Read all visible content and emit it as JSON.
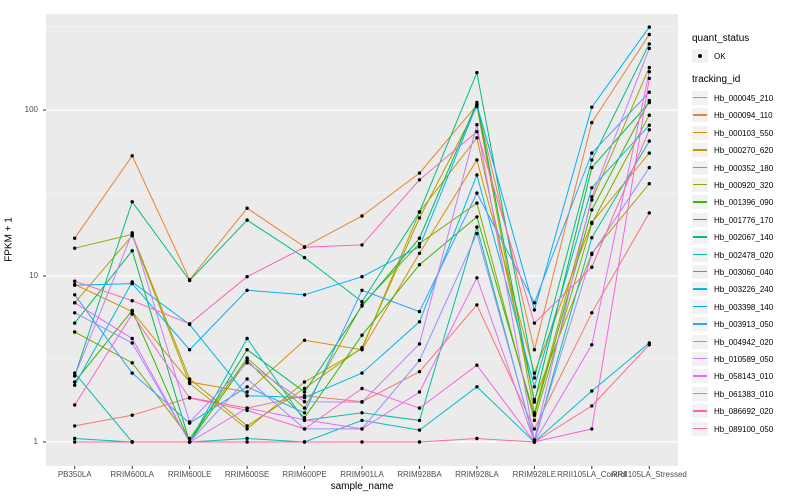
{
  "chart_data": {
    "type": "line",
    "title": "",
    "xlabel": "sample_name",
    "ylabel": "FPKM + 1",
    "y_scale": "log10",
    "ylim": [
      0.72,
      380
    ],
    "y_ticks": [
      1,
      10,
      100
    ],
    "grid": "on",
    "panel_bg": "#EBEBEB",
    "grid_color": "#FFFFFF",
    "point_color": "#000000",
    "legend_position": "right",
    "legend": {
      "quant_status_title": "quant_status",
      "quant_status_items": [
        {
          "label": "OK"
        }
      ],
      "tracking_title": "tracking_id"
    },
    "x_categories": [
      "PB350LA",
      "RRIM600LA",
      "RRIM600LE",
      "RRIM600SE",
      "RRIM600PE",
      "RRIM901LA",
      "RRIM928BA",
      "RRIM928LA",
      "RRIM928LE",
      "RRII105LA_Control",
      "RRII105LA_Stressed"
    ],
    "series": [
      {
        "name": "Hb_000045_210",
        "color": "#F8766D",
        "values": [
          1.25,
          1.45,
          1.85,
          1.6,
          1.9,
          1.75,
          2.65,
          6.7,
          1.2,
          6.0,
          24
        ]
      },
      {
        "name": "Hb_000094_110",
        "color": "#EA8331",
        "values": [
          16.9,
          53,
          9.5,
          25.6,
          15,
          23,
          41.7,
          107,
          3.6,
          84,
          285
        ]
      },
      {
        "name": "Hb_000103_550",
        "color": "#D89000",
        "values": [
          8.9,
          6.1,
          2.3,
          2.0,
          4.1,
          3.6,
          13.7,
          50,
          2.6,
          21,
          55
        ]
      },
      {
        "name": "Hb_000270_620",
        "color": "#C09B00",
        "values": [
          6.9,
          17.5,
          2.25,
          1.2,
          2.3,
          3.65,
          24.3,
          68,
          1.8,
          13.7,
          36
        ]
      },
      {
        "name": "Hb_000352_180",
        "color": "#A3A500",
        "values": [
          14.7,
          17.8,
          2.4,
          1.25,
          2.1,
          3.7,
          22.4,
          105,
          1.5,
          28.7,
          180
        ]
      },
      {
        "name": "Hb_000920_320",
        "color": "#7CAE00",
        "values": [
          4.6,
          3.0,
          1.05,
          3.2,
          1.6,
          6.7,
          15.7,
          27.5,
          1.35,
          20.7,
          93
        ]
      },
      {
        "name": "Hb_001396_090",
        "color": "#39B600",
        "values": [
          2.3,
          6.2,
          1.0,
          3.1,
          1.4,
          4.4,
          11.7,
          22.7,
          1.45,
          25,
          114
        ]
      },
      {
        "name": "Hb_001776_170",
        "color": "#00BB4E",
        "values": [
          5.2,
          14.2,
          1.0,
          3.6,
          2.0,
          6.6,
          16.9,
          111,
          1.74,
          45,
          111
        ]
      },
      {
        "name": "Hb_002067_140",
        "color": "#00BF7D",
        "values": [
          2.5,
          28,
          9.4,
          21.7,
          12.9,
          7.0,
          24.3,
          168,
          2.43,
          50,
          250
        ]
      },
      {
        "name": "Hb_002478_020",
        "color": "#00C1A3",
        "values": [
          2.6,
          1.0,
          1.0,
          4.2,
          1.35,
          1.5,
          1.35,
          19.7,
          1.0,
          17,
          65
        ]
      },
      {
        "name": "Hb_003060_040",
        "color": "#00BFC4",
        "values": [
          1.05,
          1.0,
          1.0,
          1.05,
          1.0,
          1.35,
          1.18,
          2.15,
          1.0,
          2.03,
          3.95
        ]
      },
      {
        "name": "Hb_003226_240",
        "color": "#00BAE0",
        "values": [
          2.2,
          9.2,
          5.1,
          1.9,
          1.85,
          2.6,
          5.3,
          40.6,
          2.15,
          34,
          81
        ]
      },
      {
        "name": "Hb_003398_140",
        "color": "#00B0F6",
        "values": [
          8.8,
          9.0,
          3.6,
          8.2,
          7.7,
          9.9,
          15,
          108,
          6.25,
          104,
          316
        ]
      },
      {
        "name": "Hb_003913_050",
        "color": "#35A2FF",
        "values": [
          7.7,
          2.6,
          1.3,
          2.15,
          1.5,
          8.2,
          6.1,
          31.6,
          6.9,
          55,
          128
        ]
      },
      {
        "name": "Hb_004942_020",
        "color": "#9590FF",
        "values": [
          6.0,
          3.95,
          1.0,
          2.4,
          1.2,
          1.2,
          3.1,
          18,
          1.03,
          13.5,
          45
        ]
      },
      {
        "name": "Hb_010589_050",
        "color": "#C77CFF",
        "values": [
          2.5,
          18.2,
          1.32,
          3.0,
          1.75,
          1.74,
          3.9,
          81.5,
          1.03,
          30,
          235
        ]
      },
      {
        "name": "Hb_058143_010",
        "color": "#E76BF3",
        "values": [
          6.9,
          4.2,
          1.0,
          1.6,
          1.36,
          1.2,
          2.0,
          9.75,
          1.0,
          3.85,
          170
        ]
      },
      {
        "name": "Hb_061383_010",
        "color": "#FA62DB",
        "values": [
          1.67,
          5.9,
          1.84,
          1.55,
          1.2,
          2.1,
          1.6,
          2.9,
          1.0,
          1.2,
          155
        ]
      },
      {
        "name": "Hb_086692_020",
        "color": "#FF62BC",
        "values": [
          9.3,
          7.1,
          5.15,
          9.9,
          14.9,
          15.4,
          38,
          74,
          5.2,
          11.3,
          76
        ]
      },
      {
        "name": "Hb_089100_050",
        "color": "#FF6A98",
        "values": [
          1.0,
          1.0,
          1.0,
          1.0,
          1.0,
          1.0,
          1.0,
          1.05,
          1.0,
          1.65,
          3.85
        ]
      }
    ]
  }
}
